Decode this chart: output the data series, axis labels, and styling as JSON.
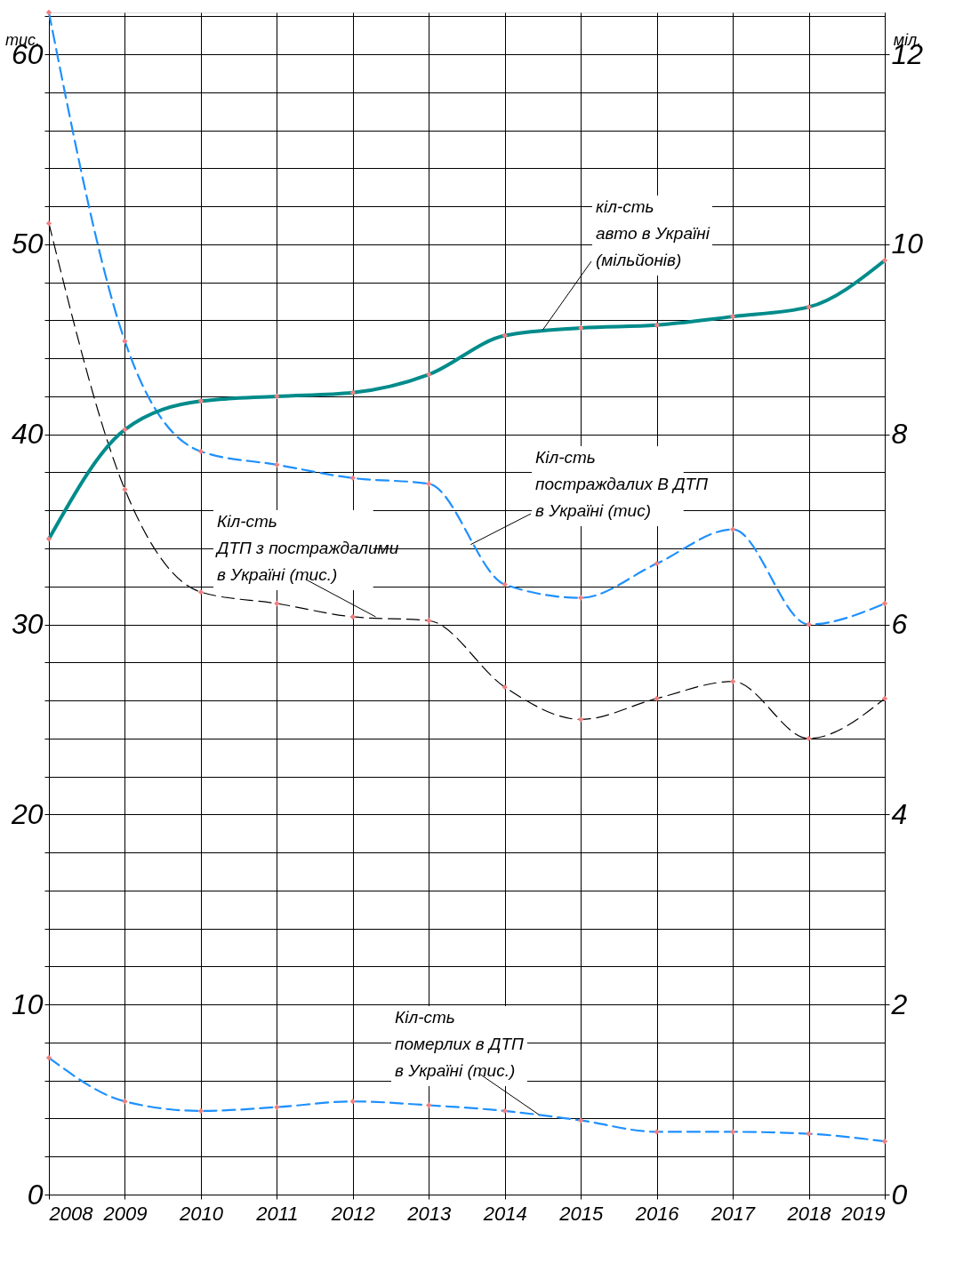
{
  "chart_data": {
    "type": "line",
    "ylabel": "тис.",
    "y2label": "міл.",
    "x": [
      2008,
      2009,
      2010,
      2011,
      2012,
      2013,
      2014,
      2015,
      2016,
      2017,
      2018,
      2019
    ],
    "xlim": [
      2008,
      2019
    ],
    "xticks": [
      2008,
      2009,
      2010,
      2011,
      2012,
      2013,
      2014,
      2015,
      2016,
      2017,
      2018,
      2019
    ],
    "ylim": [
      0,
      62.2
    ],
    "yticks": [
      0,
      {
        "value": 2,
        "label": null
      },
      {
        "value": 4,
        "label": null
      },
      {
        "value": 6,
        "label": null
      },
      {
        "value": 8,
        "label": null
      },
      10,
      {
        "value": 12,
        "label": null
      },
      {
        "value": 14,
        "label": null
      },
      {
        "value": 16,
        "label": null
      },
      {
        "value": 18,
        "label": null
      },
      20,
      {
        "value": 22,
        "label": null
      },
      {
        "value": 24,
        "label": null
      },
      {
        "value": 26,
        "label": null
      },
      {
        "value": 28,
        "label": null
      },
      30,
      {
        "value": 32,
        "label": null
      },
      {
        "value": 34,
        "label": null
      },
      {
        "value": 36,
        "label": null
      },
      {
        "value": 38,
        "label": null
      },
      40,
      {
        "value": 42,
        "label": null
      },
      {
        "value": 44,
        "label": null
      },
      {
        "value": 46,
        "label": null
      },
      {
        "value": 48,
        "label": null
      },
      50,
      {
        "value": 52,
        "label": null
      },
      {
        "value": 54,
        "label": null
      },
      {
        "value": 56,
        "label": null
      },
      {
        "value": 58,
        "label": null
      },
      60,
      {
        "value": 62,
        "label": null
      }
    ],
    "y2lim": [
      0,
      12.44
    ],
    "y2ticks": [
      0,
      2,
      4,
      6,
      8,
      10,
      12
    ],
    "grid": true,
    "marker": "diamond",
    "series": [
      {
        "color": "#1e90ff",
        "line_style": "dashed",
        "values": [
          62.2,
          44.9,
          39.1,
          38.4,
          37.7,
          37.4,
          32.1,
          31.4,
          33.2,
          35.0,
          30.0,
          31.1
        ]
      },
      {
        "color": "#000000",
        "line_style": "dashed",
        "values": [
          51.1,
          37.1,
          31.7,
          31.1,
          30.4,
          30.2,
          26.7,
          25.0,
          26.1,
          27.0,
          24.0,
          26.1
        ]
      },
      {
        "color": "#1e90ff",
        "line_style": "dashed",
        "values": [
          7.2,
          4.9,
          4.4,
          4.6,
          4.9,
          4.7,
          4.4,
          3.9,
          3.3,
          3.3,
          3.2,
          2.8
        ]
      },
      {
        "color": "#008b8b",
        "line_style": "solid",
        "axis": "y2",
        "values": [
          6.9,
          8.05,
          8.35,
          8.4,
          8.44,
          8.63,
          9.04,
          9.12,
          9.15,
          9.24,
          9.34,
          9.83
        ]
      }
    ],
    "annotations": [
      {
        "text": "кіл-сть\nавто в Україні\n(мільйонів)",
        "x": 2014.5,
        "y": 45.5
      },
      {
        "text": "Кіл-сть\nпостраждалих В ДТП\nв Україні (тис)",
        "x": 2013.55,
        "y": 34.2
      },
      {
        "text": "Кіл-сть\nДТП з постраждалими\nв Україні (тис.)",
        "x": 2012.3,
        "y": 30.4
      },
      {
        "text": "Кіл-сть\nпомерлих в ДТП\nв Україні (тис.)",
        "x": 2014.45,
        "y": 4.2
      }
    ]
  }
}
